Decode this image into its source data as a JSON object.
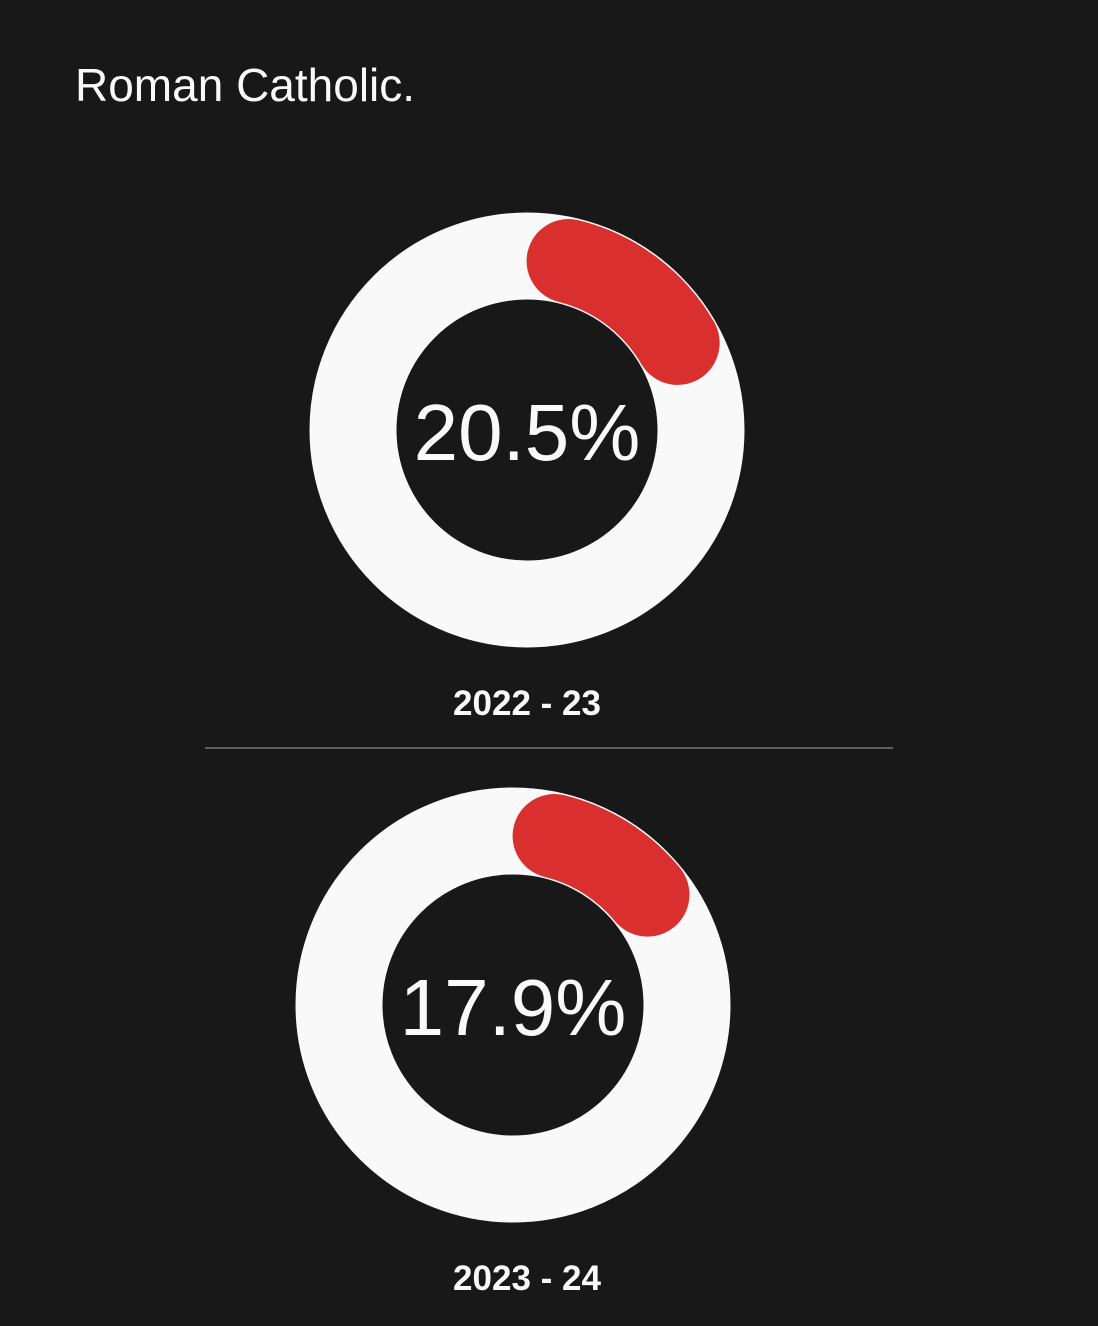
{
  "title": "Roman Catholic.",
  "colors": {
    "background": "#181818",
    "ring": "#f9f9f9",
    "accent": "#d92f2f",
    "divider": "#5e5e5e"
  },
  "chart_data": [
    {
      "type": "pie",
      "style": "donut",
      "value": 20.5,
      "max": 100,
      "center_label": "20.5%",
      "caption": "2022 - 23"
    },
    {
      "type": "pie",
      "style": "donut",
      "value": 17.9,
      "max": 100,
      "center_label": "17.9%",
      "caption": "2023 - 24"
    }
  ]
}
